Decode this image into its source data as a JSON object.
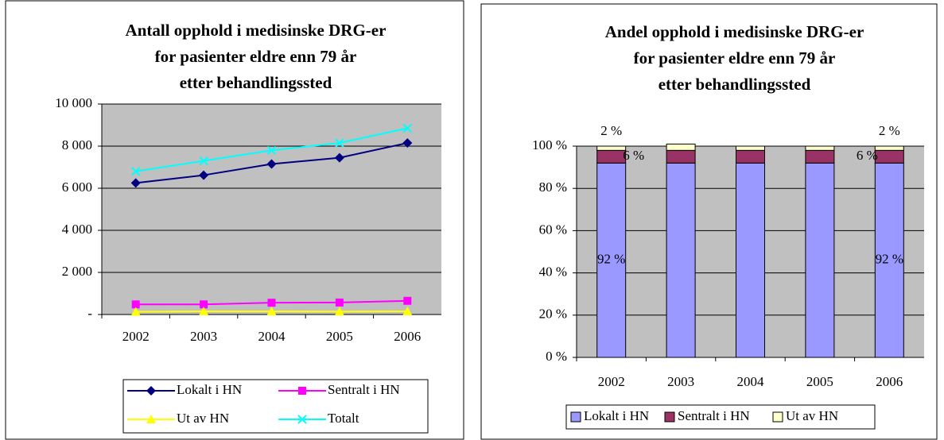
{
  "chart_data": [
    {
      "type": "line",
      "title": [
        "Antall opphold i medisinske DRG-er",
        "for pasienter eldre enn 79 år",
        "etter behandlingssted"
      ],
      "categories": [
        "2002",
        "2003",
        "2004",
        "2005",
        "2006"
      ],
      "series": [
        {
          "name": "Lokalt i HN",
          "color": "#000080",
          "marker": "diamond",
          "values": [
            6250,
            6620,
            7150,
            7450,
            8150
          ]
        },
        {
          "name": "Sentralt i HN",
          "color": "#ff00ff",
          "marker": "square",
          "values": [
            480,
            480,
            560,
            570,
            650
          ]
        },
        {
          "name": "Ut av HN",
          "color": "#ffff00",
          "marker": "triangle",
          "values": [
            130,
            150,
            150,
            140,
            150
          ]
        },
        {
          "name": "Totalt",
          "color": "#00ffff",
          "marker": "x",
          "values": [
            6800,
            7300,
            7800,
            8150,
            8850
          ]
        }
      ],
      "ylim": [
        0,
        10000
      ],
      "yticks": [
        {
          "value": 0,
          "label": "-"
        },
        {
          "value": 2000,
          "label": "2 000"
        },
        {
          "value": 4000,
          "label": "4 000"
        },
        {
          "value": 6000,
          "label": "6 000"
        },
        {
          "value": 8000,
          "label": "8 000"
        },
        {
          "value": 10000,
          "label": "10 000"
        }
      ],
      "grid": true
    },
    {
      "type": "stacked_bar",
      "title": [
        "Andel opphold i medisinske DRG-er",
        "for pasienter eldre enn 79 år",
        "etter behandlingssted"
      ],
      "categories": [
        "2002",
        "2003",
        "2004",
        "2005",
        "2006"
      ],
      "series": [
        {
          "name": "Lokalt i HN",
          "color": "#9999ff",
          "values": [
            92,
            92,
            92,
            92,
            92
          ],
          "value_labels": [
            "92 %",
            null,
            null,
            null,
            "92 %"
          ]
        },
        {
          "name": "Sentralt i HN",
          "color": "#993366",
          "values": [
            6,
            6,
            6,
            6,
            6
          ],
          "value_labels": [
            "6 %",
            null,
            null,
            null,
            "6 %"
          ]
        },
        {
          "name": "Ut av HN",
          "color": "#ffffcc",
          "values": [
            2,
            3,
            2,
            2,
            2
          ],
          "value_labels": [
            "2 %",
            null,
            null,
            null,
            "2 %"
          ]
        }
      ],
      "ylim": [
        0,
        100
      ],
      "yticks": [
        {
          "value": 0,
          "label": "0 %"
        },
        {
          "value": 20,
          "label": "20 %"
        },
        {
          "value": 40,
          "label": "40 %"
        },
        {
          "value": 60,
          "label": "60 %"
        },
        {
          "value": 80,
          "label": "80 %"
        },
        {
          "value": 100,
          "label": "100 %"
        }
      ],
      "grid": true
    }
  ]
}
